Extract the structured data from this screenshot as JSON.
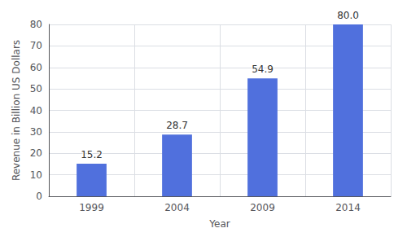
{
  "chart_data": {
    "type": "bar",
    "xlabel": "Year",
    "ylabel": "Revenue in Billion US Dollars",
    "categories": [
      "1999",
      "2004",
      "2009",
      "2014"
    ],
    "values": [
      15.2,
      28.7,
      54.9,
      80.0
    ],
    "value_labels": [
      "15.2",
      "28.7",
      "54.9",
      "80.0"
    ],
    "data_labels": true,
    "ylim": [
      0,
      80
    ],
    "yticks": [
      0,
      10,
      20,
      30,
      40,
      50,
      60,
      70,
      80
    ],
    "grid": true
  }
}
